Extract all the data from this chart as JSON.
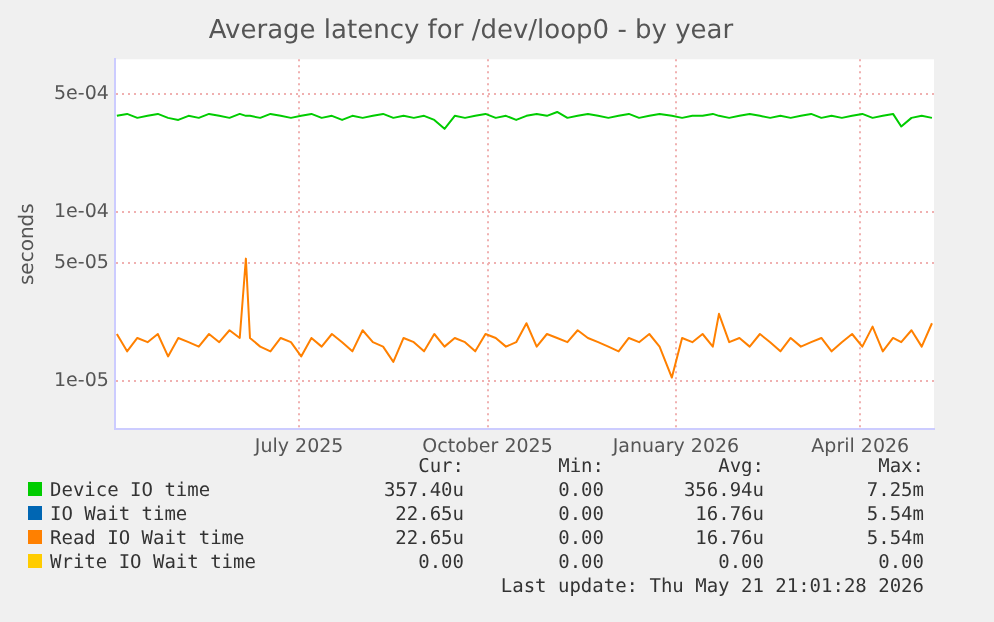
{
  "chart_data": {
    "type": "line",
    "title": "Average latency for /dev/loop0 - by year",
    "ylabel": "seconds",
    "x": [
      "2025-04-03",
      "2025-04-08",
      "2025-04-13",
      "2025-04-18",
      "2025-04-23",
      "2025-04-28",
      "2025-05-03",
      "2025-05-08",
      "2025-05-13",
      "2025-05-18",
      "2025-05-23",
      "2025-05-28",
      "2025-06-02",
      "2025-06-05",
      "2025-06-07",
      "2025-06-12",
      "2025-06-17",
      "2025-06-22",
      "2025-06-27",
      "2025-07-02",
      "2025-07-07",
      "2025-07-12",
      "2025-07-17",
      "2025-07-22",
      "2025-07-27",
      "2025-08-01",
      "2025-08-06",
      "2025-08-11",
      "2025-08-16",
      "2025-08-21",
      "2025-08-26",
      "2025-08-31",
      "2025-09-05",
      "2025-09-10",
      "2025-09-15",
      "2025-09-20",
      "2025-09-25",
      "2025-09-30",
      "2025-10-05",
      "2025-10-10",
      "2025-10-15",
      "2025-10-20",
      "2025-10-25",
      "2025-10-30",
      "2025-11-04",
      "2025-11-09",
      "2025-11-14",
      "2025-11-19",
      "2025-11-24",
      "2025-11-29",
      "2025-12-04",
      "2025-12-09",
      "2025-12-14",
      "2025-12-19",
      "2025-12-24",
      "2025-12-30",
      "2026-01-04",
      "2026-01-09",
      "2026-01-14",
      "2026-01-19",
      "2026-01-22",
      "2026-01-27",
      "2026-02-01",
      "2026-02-06",
      "2026-02-11",
      "2026-02-16",
      "2026-02-21",
      "2026-02-26",
      "2026-03-03",
      "2026-03-08",
      "2026-03-13",
      "2026-03-18",
      "2026-03-23",
      "2026-03-28",
      "2026-04-02",
      "2026-04-07",
      "2026-04-12",
      "2026-04-17",
      "2026-04-21",
      "2026-04-26",
      "2026-05-01",
      "2026-05-06"
    ],
    "series": [
      {
        "name": "Device IO time",
        "color": "#00cc00",
        "values": [
          0.00037,
          0.00038,
          0.00036,
          0.00037,
          0.00038,
          0.00036,
          0.00035,
          0.00037,
          0.00036,
          0.00038,
          0.00037,
          0.00036,
          0.00038,
          0.00037,
          0.00037,
          0.00036,
          0.00038,
          0.00037,
          0.00036,
          0.00037,
          0.00038,
          0.00036,
          0.00037,
          0.00035,
          0.00037,
          0.00036,
          0.00037,
          0.00038,
          0.00036,
          0.00037,
          0.00036,
          0.00037,
          0.00035,
          0.00031,
          0.00037,
          0.00036,
          0.00037,
          0.00038,
          0.00036,
          0.00037,
          0.00035,
          0.00037,
          0.00038,
          0.00037,
          0.00039,
          0.00036,
          0.00037,
          0.00038,
          0.00037,
          0.00036,
          0.00037,
          0.00038,
          0.00036,
          0.00037,
          0.00038,
          0.00037,
          0.00036,
          0.00037,
          0.00037,
          0.00038,
          0.00037,
          0.00036,
          0.00037,
          0.00038,
          0.00037,
          0.00036,
          0.00037,
          0.00036,
          0.00037,
          0.00038,
          0.00036,
          0.00037,
          0.00036,
          0.00037,
          0.00038,
          0.00036,
          0.00037,
          0.00038,
          0.00032,
          0.00036,
          0.00037,
          0.00036
        ]
      },
      {
        "name": "IO Wait time",
        "color": "#0066b3",
        "values": [
          null,
          null,
          null,
          null,
          null,
          null,
          null,
          null,
          null,
          null,
          null,
          null,
          null,
          null,
          null,
          null,
          null,
          null,
          null,
          null,
          null,
          null,
          null,
          null,
          null,
          null,
          null,
          null,
          null,
          null,
          null,
          null,
          null,
          null,
          null,
          null,
          null,
          null,
          null,
          null,
          null,
          null,
          null,
          null,
          null,
          null,
          null,
          null,
          null,
          null,
          null,
          null,
          null,
          null,
          null,
          null,
          null,
          null,
          null,
          null,
          null,
          null,
          null,
          null,
          null,
          null,
          null,
          null,
          null,
          null,
          null,
          null,
          null,
          null,
          null,
          null,
          null,
          null,
          null,
          null,
          null,
          null
        ]
      },
      {
        "name": "Read IO Wait time",
        "color": "#ff8000",
        "values": [
          1.9e-05,
          1.5e-05,
          1.8e-05,
          1.7e-05,
          1.9e-05,
          1.4e-05,
          1.8e-05,
          1.7e-05,
          1.6e-05,
          1.9e-05,
          1.7e-05,
          2e-05,
          1.8e-05,
          5.3e-05,
          1.8e-05,
          1.6e-05,
          1.5e-05,
          1.8e-05,
          1.7e-05,
          1.4e-05,
          1.8e-05,
          1.6e-05,
          1.9e-05,
          1.7e-05,
          1.5e-05,
          2e-05,
          1.7e-05,
          1.6e-05,
          1.3e-05,
          1.8e-05,
          1.7e-05,
          1.5e-05,
          1.9e-05,
          1.6e-05,
          1.8e-05,
          1.7e-05,
          1.5e-05,
          1.9e-05,
          1.8e-05,
          1.6e-05,
          1.7e-05,
          2.2e-05,
          1.6e-05,
          1.9e-05,
          1.8e-05,
          1.7e-05,
          2e-05,
          1.8e-05,
          1.7e-05,
          1.6e-05,
          1.5e-05,
          1.8e-05,
          1.7e-05,
          1.9e-05,
          1.6e-05,
          1.05e-05,
          1.8e-05,
          1.7e-05,
          1.9e-05,
          1.6e-05,
          2.5e-05,
          1.7e-05,
          1.8e-05,
          1.6e-05,
          1.9e-05,
          1.7e-05,
          1.5e-05,
          1.8e-05,
          1.6e-05,
          1.7e-05,
          1.8e-05,
          1.5e-05,
          1.7e-05,
          1.9e-05,
          1.6e-05,
          2.1e-05,
          1.5e-05,
          1.8e-05,
          1.7e-05,
          2e-05,
          1.6e-05,
          2.2e-05
        ]
      },
      {
        "name": "Write IO Wait time",
        "color": "#ffcc00",
        "values": [
          null,
          null,
          null,
          null,
          null,
          null,
          null,
          null,
          null,
          null,
          null,
          null,
          null,
          null,
          null,
          null,
          null,
          null,
          null,
          null,
          null,
          null,
          null,
          null,
          null,
          null,
          null,
          null,
          null,
          null,
          null,
          null,
          null,
          null,
          null,
          null,
          null,
          null,
          null,
          null,
          null,
          null,
          null,
          null,
          null,
          null,
          null,
          null,
          null,
          null,
          null,
          null,
          null,
          null,
          null,
          null,
          null,
          null,
          null,
          null,
          null,
          null,
          null,
          null,
          null,
          null,
          null,
          null,
          null,
          null,
          null,
          null,
          null,
          null,
          null,
          null,
          null,
          null,
          null,
          null,
          null,
          null
        ]
      }
    ],
    "log": "y",
    "ylim": [
      5.2e-06,
      0.0008
    ],
    "yticks": [
      {
        "value": 1e-05,
        "label": "1e-05"
      },
      {
        "value": 5e-05,
        "label": "5e-05"
      },
      {
        "value": 0.0001,
        "label": "1e-04"
      },
      {
        "value": 0.0005,
        "label": "5e-04"
      }
    ],
    "xlim": [
      "2025-04-02",
      "2026-05-07"
    ],
    "xticks": [
      {
        "value": "2025-07-01",
        "label": "July 2025"
      },
      {
        "value": "2025-10-01",
        "label": "October 2025"
      },
      {
        "value": "2026-01-01",
        "label": "January 2026"
      },
      {
        "value": "2026-04-01",
        "label": "April 2026"
      }
    ],
    "grid": true,
    "legend": "bottom",
    "marker": "none",
    "line_style": "solid",
    "annotations": [
      "Cur:",
      "Min:",
      "Avg:",
      "Max:",
      "357.40u",
      "0.00",
      "356.94u",
      "7.25m",
      "22.65u",
      "0.00",
      "16.76u",
      "5.54m",
      "22.65u",
      "0.00",
      "16.76u",
      "5.54m",
      "0.00",
      "0.00",
      "0.00",
      "0.00",
      "Last update: Thu May 21 21:01:28 2026"
    ]
  }
}
